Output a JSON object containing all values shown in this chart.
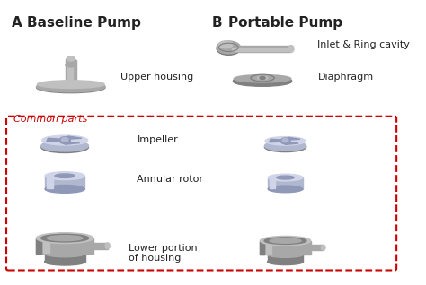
{
  "title_A": "A",
  "title_B": "B",
  "label_baseline": "Baseline Pump",
  "label_portable": "Portable Pump",
  "label_upper_housing": "Upper housing",
  "label_common": "Common parts",
  "label_inlet": "Inlet & Ring cavity",
  "label_diaphragm": "Diaphragm",
  "label_impeller": "Impeller",
  "label_annular": "Annular rotor",
  "label_lower": "Lower portion\nof housing",
  "bg_color": "#ffffff",
  "gray_color": "#a8a8a8",
  "gray_light": "#c0c0c0",
  "gray_dark": "#808080",
  "blue_color": "#b0b8d0",
  "blue_light": "#d0d4e8",
  "blue_mid": "#9098b8",
  "red_dashed": "#cc0000",
  "text_color": "#222222",
  "red_text": "#cc0000"
}
